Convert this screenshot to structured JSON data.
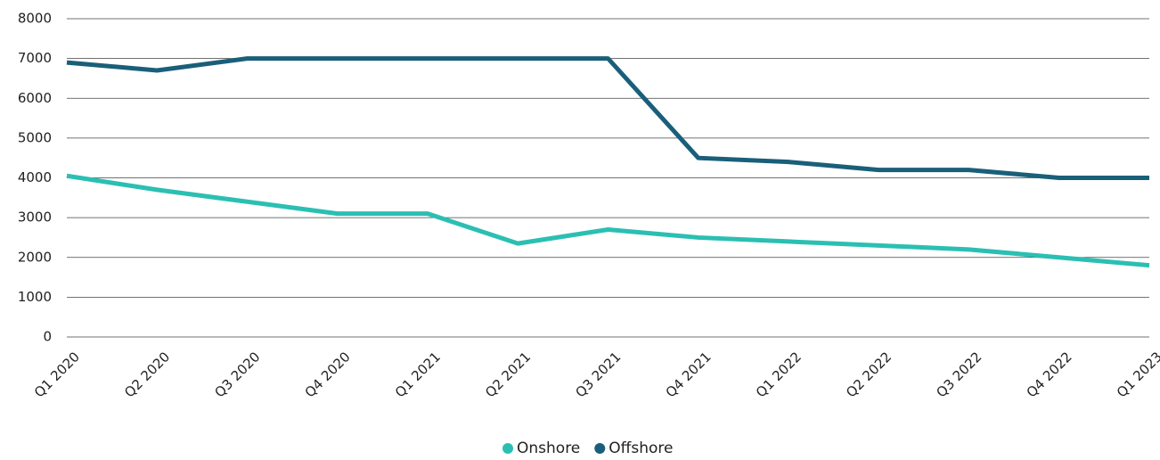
{
  "chart_data": {
    "type": "line",
    "categories": [
      "Q1 2020",
      "Q2 2020",
      "Q3 2020",
      "Q4 2020",
      "Q1 2021",
      "Q2 2021",
      "Q3 2021",
      "Q4 2021",
      "Q1 2022",
      "Q2 2022",
      "Q3 2022",
      "Q4 2022",
      "Q1 2023"
    ],
    "series": [
      {
        "name": "Onshore",
        "color": "#2bbfb3",
        "values": [
          4050,
          3700,
          3400,
          3100,
          3100,
          2350,
          2700,
          2500,
          2400,
          2300,
          2200,
          2000,
          1800
        ]
      },
      {
        "name": "Offshore",
        "color": "#1a5f7a",
        "values": [
          6900,
          6700,
          7000,
          7000,
          7000,
          7000,
          7000,
          4500,
          4400,
          4200,
          4200,
          4000,
          4000
        ]
      }
    ],
    "ylim": [
      0,
      8000
    ],
    "yticks": [
      0,
      1000,
      2000,
      3000,
      4000,
      5000,
      6000,
      7000,
      8000
    ],
    "grid": true,
    "legend": "bottom"
  }
}
